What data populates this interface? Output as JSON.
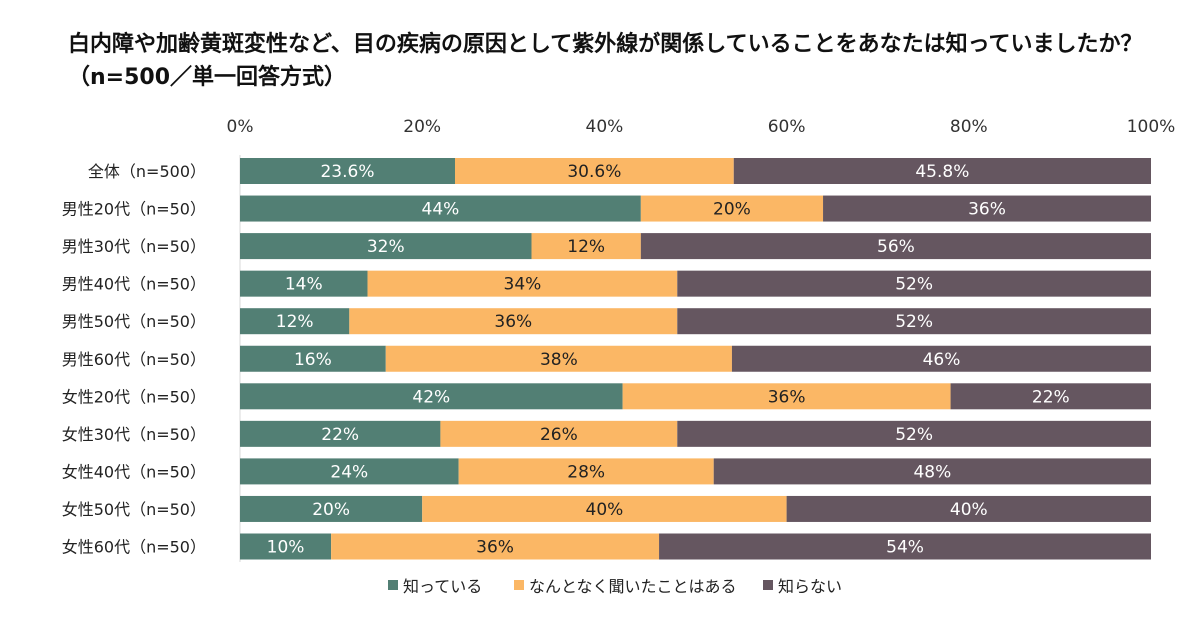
{
  "chart_data": {
    "type": "bar",
    "orientation": "horizontal",
    "stacked": "100%",
    "title": "白内障や加齢黄斑変性など、目の疾病の原因として紫外線が関係していることをあなたは知っていましたか？（n=500／単一回答方式）",
    "categories": [
      "全体（n=500）",
      "男性20代（n=50）",
      "男性30代（n=50）",
      "男性40代（n=50）",
      "男性50代（n=50）",
      "男性60代（n=50）",
      "女性20代（n=50）",
      "女性30代（n=50）",
      "女性40代（n=50）",
      "女性50代（n=50）",
      "女性60代（n=50）"
    ],
    "series": [
      {
        "name": "知っている",
        "color": "#527F74",
        "values": [
          23.6,
          44,
          32,
          14,
          12,
          16,
          42,
          22,
          24,
          20,
          10
        ],
        "labels": [
          "23.6%",
          "44%",
          "32%",
          "14%",
          "12%",
          "16%",
          "42%",
          "22%",
          "24%",
          "20%",
          "10%"
        ]
      },
      {
        "name": "なんとなく聞いたことはある",
        "color": "#FBB765",
        "values": [
          30.6,
          20,
          12,
          34,
          36,
          38,
          36,
          26,
          28,
          40,
          36
        ],
        "labels": [
          "30.6%",
          "20%",
          "12%",
          "34%",
          "36%",
          "38%",
          "36%",
          "26%",
          "28%",
          "40%",
          "36%"
        ]
      },
      {
        "name": "知らない",
        "color": "#655660",
        "values": [
          45.8,
          36,
          56,
          52,
          52,
          46,
          22,
          52,
          48,
          40,
          54
        ],
        "labels": [
          "45.8%",
          "36%",
          "56%",
          "52%",
          "52%",
          "46%",
          "22%",
          "52%",
          "48%",
          "40%",
          "54%"
        ]
      }
    ],
    "xlim": [
      0,
      100
    ],
    "xticks": [
      "0%",
      "20%",
      "40%",
      "60%",
      "80%",
      "100%"
    ],
    "axis_position": "top",
    "grid": false,
    "legend": "bottom"
  }
}
